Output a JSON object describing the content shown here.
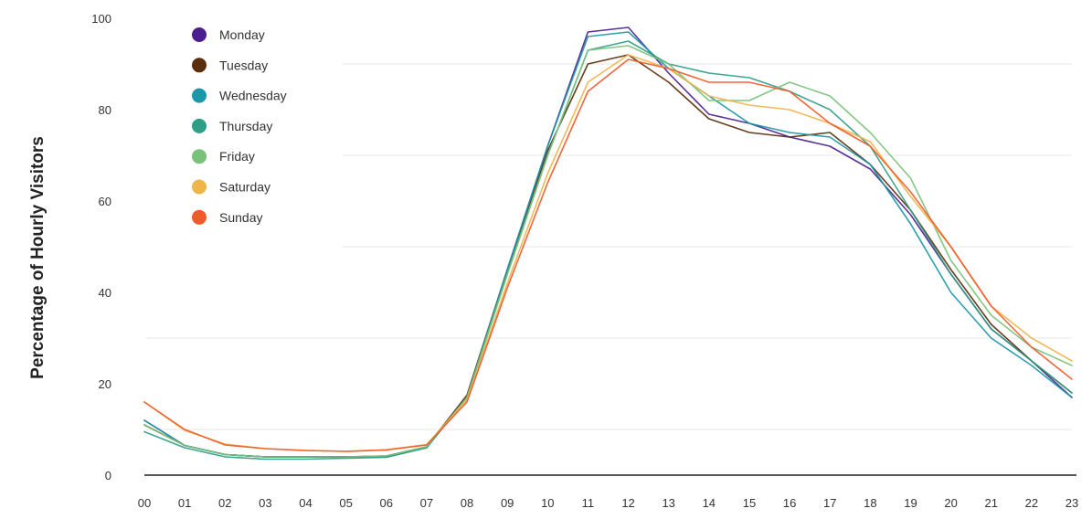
{
  "chart_data": {
    "type": "line",
    "title": "",
    "xlabel": "",
    "ylabel": "Percentage of Hourly Visitors",
    "x": [
      "00",
      "01",
      "02",
      "03",
      "04",
      "05",
      "06",
      "07",
      "08",
      "09",
      "10",
      "11",
      "12",
      "13",
      "14",
      "15",
      "16",
      "17",
      "18",
      "19",
      "20",
      "21",
      "22",
      "23"
    ],
    "yticks": [
      0,
      20,
      40,
      60,
      80,
      100
    ],
    "ylim": [
      0,
      100
    ],
    "grid": true,
    "legend_position": "top-left",
    "series": [
      {
        "name": "Monday",
        "color": "#4b1f8f",
        "values": [
          12,
          6.5,
          4.5,
          4,
          4,
          4,
          4,
          6,
          17,
          45,
          72,
          97,
          98,
          88,
          79,
          77,
          74,
          72,
          67,
          57,
          44,
          32,
          25,
          17
        ]
      },
      {
        "name": "Tuesday",
        "color": "#5a2d0c",
        "values": [
          11,
          6.5,
          4.5,
          4,
          4,
          4,
          4.2,
          6.2,
          17.5,
          45,
          71,
          90,
          92,
          86,
          78,
          75,
          74,
          75,
          68,
          58,
          45,
          33,
          25,
          18
        ]
      },
      {
        "name": "Wednesday",
        "color": "#1a97a8",
        "values": [
          12,
          6.5,
          4.5,
          4,
          4,
          4,
          4,
          6,
          17,
          45,
          72,
          96,
          97,
          89,
          83,
          77,
          75,
          74,
          68,
          55,
          40,
          30,
          24,
          17
        ]
      },
      {
        "name": "Thursday",
        "color": "#2f9e86",
        "values": [
          9.5,
          6,
          4,
          3.5,
          3.5,
          3.7,
          3.9,
          6,
          17,
          44,
          70,
          93,
          95,
          90,
          88,
          87,
          84,
          80,
          72,
          58,
          44,
          32,
          25,
          18
        ]
      },
      {
        "name": "Friday",
        "color": "#7ac27a",
        "values": [
          11,
          6.5,
          4.5,
          4,
          4,
          4,
          4.2,
          6.2,
          17,
          44,
          70,
          93,
          94,
          90,
          82,
          82,
          86,
          83,
          75,
          65,
          47,
          35,
          28,
          24
        ]
      },
      {
        "name": "Saturday",
        "color": "#efb44a",
        "values": [
          16,
          9.8,
          6.8,
          5.8,
          5.4,
          5.2,
          5.6,
          6.7,
          16.5,
          42,
          66,
          86,
          92,
          89,
          83,
          81,
          80,
          77,
          73,
          61,
          50,
          37,
          30,
          25
        ]
      },
      {
        "name": "Sunday",
        "color": "#ef5a2b",
        "values": [
          16,
          10,
          6.6,
          5.8,
          5.4,
          5.2,
          5.5,
          6.6,
          16,
          41,
          64,
          84,
          91,
          89,
          86,
          86,
          84,
          77,
          72,
          62,
          50,
          37,
          28,
          21
        ]
      }
    ]
  }
}
